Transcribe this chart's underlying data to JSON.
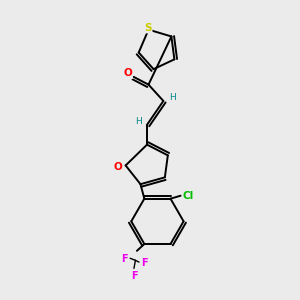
{
  "background_color": "#ebebeb",
  "bond_color": "#000000",
  "S_color": "#cccc00",
  "O_color": "#ff0000",
  "Cl_color": "#00bb00",
  "F_color": "#ee00ee",
  "H_color": "#008888",
  "figsize": [
    3.0,
    3.0
  ],
  "dpi": 100,
  "xlim": [
    0,
    10
  ],
  "ylim": [
    0,
    10
  ]
}
